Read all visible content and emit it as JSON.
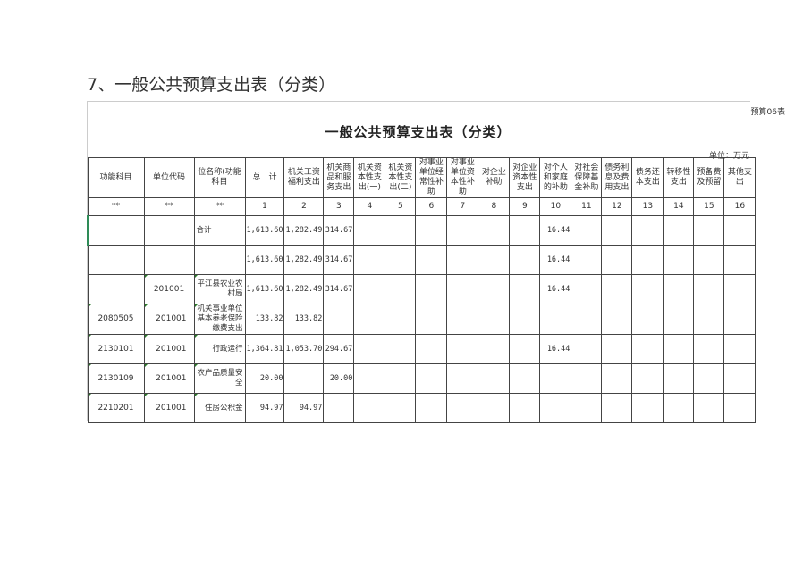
{
  "heading": "7、一般公共预算支出表（分类）",
  "form_no": "预算06表",
  "title": "一般公共预算支出表（分类）",
  "unit": "单位：万元",
  "headers": [
    "功能科目",
    "单位代码",
    "位名称(功能科目",
    "总　计",
    "机关工资福利支出",
    "机关商品和服务支出",
    "机关资本性支出(一)",
    "机关资本性支出(二)",
    "对事业单位经常性补助",
    "对事业单位资本性补助",
    "对企业补助",
    "对企业资本性支出",
    "对个人和家庭的补助",
    "对社会保障基金补助",
    "债务利息及费用支出",
    "债务还本支出",
    "转移性支出",
    "预备费及预留",
    "其他支出"
  ],
  "col_numbers": [
    "**",
    "**",
    "**",
    "1",
    "2",
    "3",
    "4",
    "5",
    "6",
    "7",
    "8",
    "9",
    "10",
    "11",
    "12",
    "13",
    "14",
    "15",
    "16"
  ],
  "rows": [
    {
      "code": "",
      "unit_code": "",
      "name": "合计",
      "total": "1,613.60",
      "c2": "1,282.49",
      "c3": "314.67",
      "c10": "16.44"
    },
    {
      "code": "",
      "unit_code": "",
      "name": "",
      "total": "1,613.60",
      "c2": "1,282.49",
      "c3": "314.67",
      "c10": "16.44"
    },
    {
      "code": "",
      "unit_code": "201001",
      "name": "平江县农业农村局",
      "total": "1,613.60",
      "c2": "1,282.49",
      "c3": "314.67",
      "c10": "16.44"
    },
    {
      "code": "2080505",
      "unit_code": "201001",
      "name": "机关事业单位基本养老保险缴费支出",
      "total": "133.82",
      "c2": "133.82",
      "c3": "",
      "c10": ""
    },
    {
      "code": "2130101",
      "unit_code": "201001",
      "name": "行政运行",
      "total": "1,364.81",
      "c2": "1,053.70",
      "c3": "294.67",
      "c10": "16.44"
    },
    {
      "code": "2130109",
      "unit_code": "201001",
      "name": "农产品质量安全",
      "total": "20.00",
      "c2": "",
      "c3": "20.00",
      "c10": ""
    },
    {
      "code": "2210201",
      "unit_code": "201001",
      "name": "住房公积金",
      "total": "94.97",
      "c2": "94.97",
      "c3": "",
      "c10": ""
    }
  ]
}
